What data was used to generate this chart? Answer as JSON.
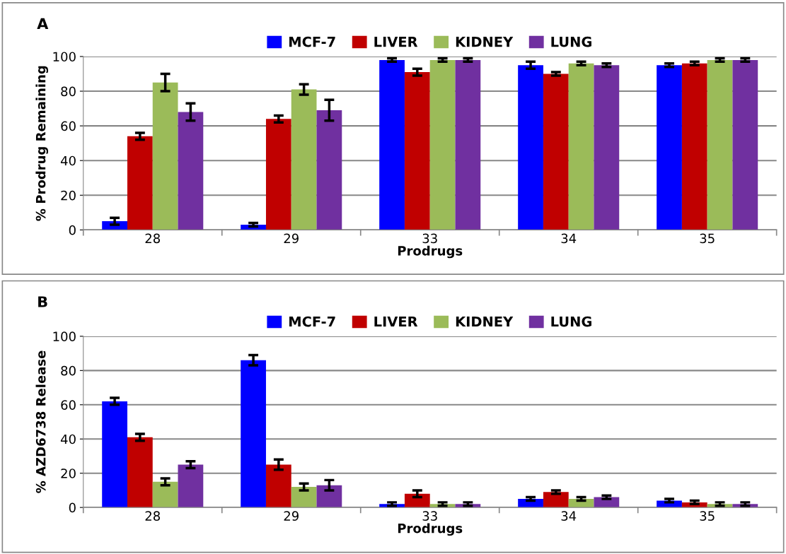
{
  "chart_data": [
    {
      "type": "bar",
      "title": "A",
      "xlabel": "Prodrugs",
      "ylabel": "% Prodrug Remaining",
      "categories": [
        "28",
        "29",
        "33",
        "34",
        "35"
      ],
      "ylim": [
        0,
        100
      ],
      "yticks": [
        0,
        20,
        40,
        60,
        80,
        100
      ],
      "grid": "y",
      "legend": "top",
      "series": [
        {
          "name": "MCF-7",
          "color": "#0000ff",
          "values": [
            5,
            3,
            98,
            95,
            95
          ],
          "errors": [
            2,
            1,
            1,
            2,
            1
          ]
        },
        {
          "name": "LIVER",
          "color": "#c00000",
          "values": [
            54,
            64,
            91,
            90,
            96
          ],
          "errors": [
            2,
            2,
            2,
            1,
            1
          ]
        },
        {
          "name": "KIDNEY",
          "color": "#9bbb59",
          "values": [
            85,
            81,
            98,
            96,
            98
          ],
          "errors": [
            5,
            3,
            1,
            1,
            1
          ]
        },
        {
          "name": "LUNG",
          "color": "#7030a0",
          "values": [
            68,
            69,
            98,
            95,
            98
          ],
          "errors": [
            5,
            6,
            1,
            1,
            1
          ]
        }
      ]
    },
    {
      "type": "bar",
      "title": "B",
      "xlabel": "Prodrugs",
      "ylabel": "% AZD6738 Release",
      "categories": [
        "28",
        "29",
        "33",
        "34",
        "35"
      ],
      "ylim": [
        0,
        100
      ],
      "yticks": [
        0,
        20,
        40,
        60,
        80,
        100
      ],
      "grid": "y",
      "legend": "top",
      "series": [
        {
          "name": "MCF-7",
          "color": "#0000ff",
          "values": [
            62,
            86,
            2,
            5,
            4
          ],
          "errors": [
            2,
            3,
            1,
            1,
            1
          ]
        },
        {
          "name": "LIVER",
          "color": "#c00000",
          "values": [
            41,
            25,
            8,
            9,
            3
          ],
          "errors": [
            2,
            3,
            2,
            1,
            1
          ]
        },
        {
          "name": "KIDNEY",
          "color": "#9bbb59",
          "values": [
            15,
            12,
            2,
            5,
            2
          ],
          "errors": [
            2,
            2,
            1,
            1,
            1
          ]
        },
        {
          "name": "LUNG",
          "color": "#7030a0",
          "values": [
            25,
            13,
            2,
            6,
            2
          ],
          "errors": [
            2,
            3,
            1,
            1,
            1
          ]
        }
      ]
    }
  ]
}
